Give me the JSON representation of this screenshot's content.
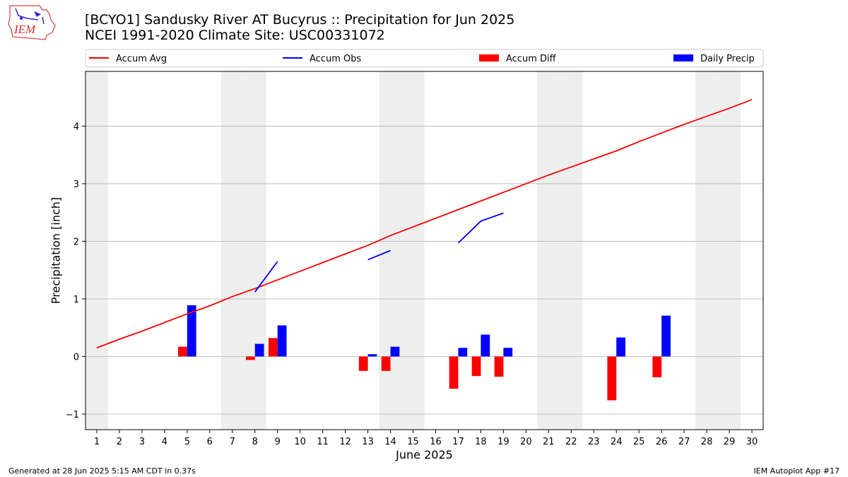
{
  "header": {
    "logo_text": "IEM",
    "title": "[BCYO1] Sandusky River  AT Bucyrus :: Precipitation for Jun 2025",
    "subtitle": "NCEI 1991-2020 Climate Site: USC00331072"
  },
  "footer": {
    "generated": "Generated at 28 Jun 2025 5:15 AM CDT in 0.37s",
    "app": "IEM Autoplot App #17"
  },
  "colors": {
    "accum_avg": "#ff0000",
    "accum_obs": "#0000ff",
    "accum_diff": "#ff0000",
    "daily_precip": "#0000ff",
    "weekend_band": "#eeeeee",
    "grid": "#b0b0b0"
  },
  "chart_data": {
    "type": "bar",
    "xlabel": "June 2025",
    "ylabel": "Precipitation [inch]",
    "x": [
      1,
      2,
      3,
      4,
      5,
      6,
      7,
      8,
      9,
      10,
      11,
      12,
      13,
      14,
      15,
      16,
      17,
      18,
      19,
      20,
      21,
      22,
      23,
      24,
      25,
      26,
      27,
      28,
      29,
      30
    ],
    "xlim": [
      0.5,
      30.5
    ],
    "ylim": [
      -1.27,
      4.95
    ],
    "yticks": [
      -1,
      0,
      1,
      2,
      3,
      4
    ],
    "grid": true,
    "legend_position": "top",
    "weekend_days": [
      1,
      7,
      8,
      14,
      15,
      21,
      22,
      28,
      29
    ],
    "series": [
      {
        "name": "Accum Avg",
        "type": "line",
        "values": [
          0.15,
          0.3,
          0.44,
          0.59,
          0.74,
          0.88,
          1.04,
          1.18,
          1.33,
          1.48,
          1.63,
          1.78,
          1.93,
          2.1,
          2.25,
          2.4,
          2.55,
          2.7,
          2.85,
          3.0,
          3.15,
          3.29,
          3.43,
          3.57,
          3.73,
          3.88,
          4.03,
          4.17,
          4.31,
          4.46
        ]
      },
      {
        "name": "Accum Obs",
        "type": "line",
        "segments": [
          {
            "x": [
              8,
              9
            ],
            "values": [
              1.12,
              1.65
            ]
          },
          {
            "x": [
              13,
              14
            ],
            "values": [
              1.68,
              1.84
            ]
          },
          {
            "x": [
              17,
              18,
              19
            ],
            "values": [
              1.97,
              2.35,
              2.49
            ]
          }
        ]
      },
      {
        "name": "Accum Diff",
        "type": "bar",
        "x": [
          5,
          8,
          9,
          13,
          14,
          17,
          18,
          19,
          24,
          26
        ],
        "values": [
          0.17,
          -0.06,
          0.32,
          -0.25,
          -0.25,
          -0.56,
          -0.34,
          -0.35,
          -0.76,
          -0.36
        ]
      },
      {
        "name": "Daily Precip",
        "type": "bar",
        "x": [
          5,
          8,
          9,
          13,
          14,
          17,
          18,
          19,
          24,
          26
        ],
        "values": [
          0.89,
          0.22,
          0.54,
          0.04,
          0.17,
          0.15,
          0.38,
          0.15,
          0.33,
          0.71
        ]
      }
    ]
  }
}
